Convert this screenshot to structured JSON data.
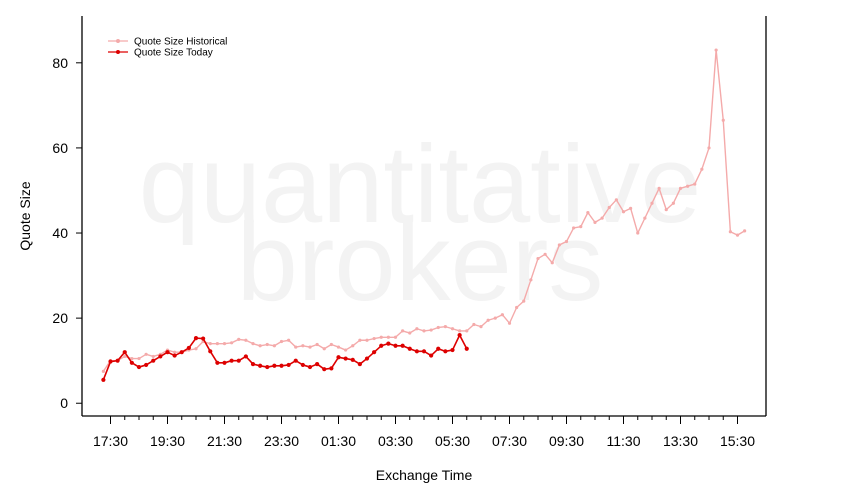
{
  "watermark": [
    "quantitative",
    "brokers"
  ],
  "chart_data": {
    "type": "line",
    "xlabel": "Exchange Time",
    "ylabel": "Quote Size",
    "ylim": [
      -3,
      91
    ],
    "yticks": [
      0,
      20,
      40,
      60,
      80
    ],
    "xticks": [
      {
        "i": 1,
        "label": "17:30"
      },
      {
        "i": 9,
        "label": "19:30"
      },
      {
        "i": 17,
        "label": "21:30"
      },
      {
        "i": 25,
        "label": "23:30"
      },
      {
        "i": 33,
        "label": "01:30"
      },
      {
        "i": 41,
        "label": "03:30"
      },
      {
        "i": 49,
        "label": "05:30"
      },
      {
        "i": 57,
        "label": "07:30"
      },
      {
        "i": 65,
        "label": "09:30"
      },
      {
        "i": 73,
        "label": "11:30"
      },
      {
        "i": 81,
        "label": "13:30"
      },
      {
        "i": 89,
        "label": "15:30"
      }
    ],
    "minor_ticks_every": 2,
    "xlim": [
      -3,
      93
    ],
    "grid": false,
    "legend_position": "top-left",
    "series": [
      {
        "name": "Quote Size Historical",
        "color": "#f4aaaa",
        "values": [
          7.5,
          10.0,
          10.0,
          11.0,
          10.5,
          10.5,
          11.5,
          11.0,
          11.5,
          12.5,
          12.0,
          12.0,
          12.5,
          12.8,
          14.5,
          14.0,
          14.0,
          14.0,
          14.2,
          15.0,
          14.8,
          14.0,
          13.5,
          13.8,
          13.5,
          14.5,
          14.8,
          13.2,
          13.5,
          13.2,
          13.8,
          12.8,
          13.8,
          13.2,
          12.5,
          13.5,
          14.8,
          14.8,
          15.2,
          15.5,
          15.5,
          15.5,
          17.0,
          16.5,
          17.5,
          17.0,
          17.2,
          17.8,
          18.0,
          17.5,
          17.0,
          17.0,
          18.5,
          18.0,
          19.5,
          20.0,
          20.8,
          18.8,
          22.5,
          24.0,
          29.0,
          34.0,
          35.0,
          33.0,
          37.2,
          38.0,
          41.2,
          41.5,
          44.8,
          42.5,
          43.5,
          46.0,
          47.8,
          45.0,
          45.8,
          40.0,
          43.5,
          47.0,
          50.5,
          45.5,
          47.0,
          50.5,
          51.0,
          51.5,
          55.0,
          60.0,
          83.0,
          66.5,
          40.3,
          39.5,
          40.5
        ]
      },
      {
        "name": "Quote Size Today",
        "color": "#dd0000",
        "values": [
          5.5,
          9.8,
          10.0,
          12.0,
          9.5,
          8.5,
          9.0,
          10.0,
          11.0,
          12.0,
          11.2,
          12.0,
          13.0,
          15.3,
          15.2,
          12.2,
          9.5,
          9.5,
          10.0,
          10.0,
          11.0,
          9.2,
          8.8,
          8.5,
          8.8,
          8.8,
          9.0,
          10.0,
          9.0,
          8.5,
          9.2,
          8.0,
          8.2,
          10.8,
          10.5,
          10.2,
          9.2,
          10.5,
          12.0,
          13.5,
          14.0,
          13.5,
          13.5,
          12.8,
          12.2,
          12.2,
          11.2,
          12.8,
          12.2,
          12.5,
          16.0,
          12.8
        ]
      }
    ]
  }
}
